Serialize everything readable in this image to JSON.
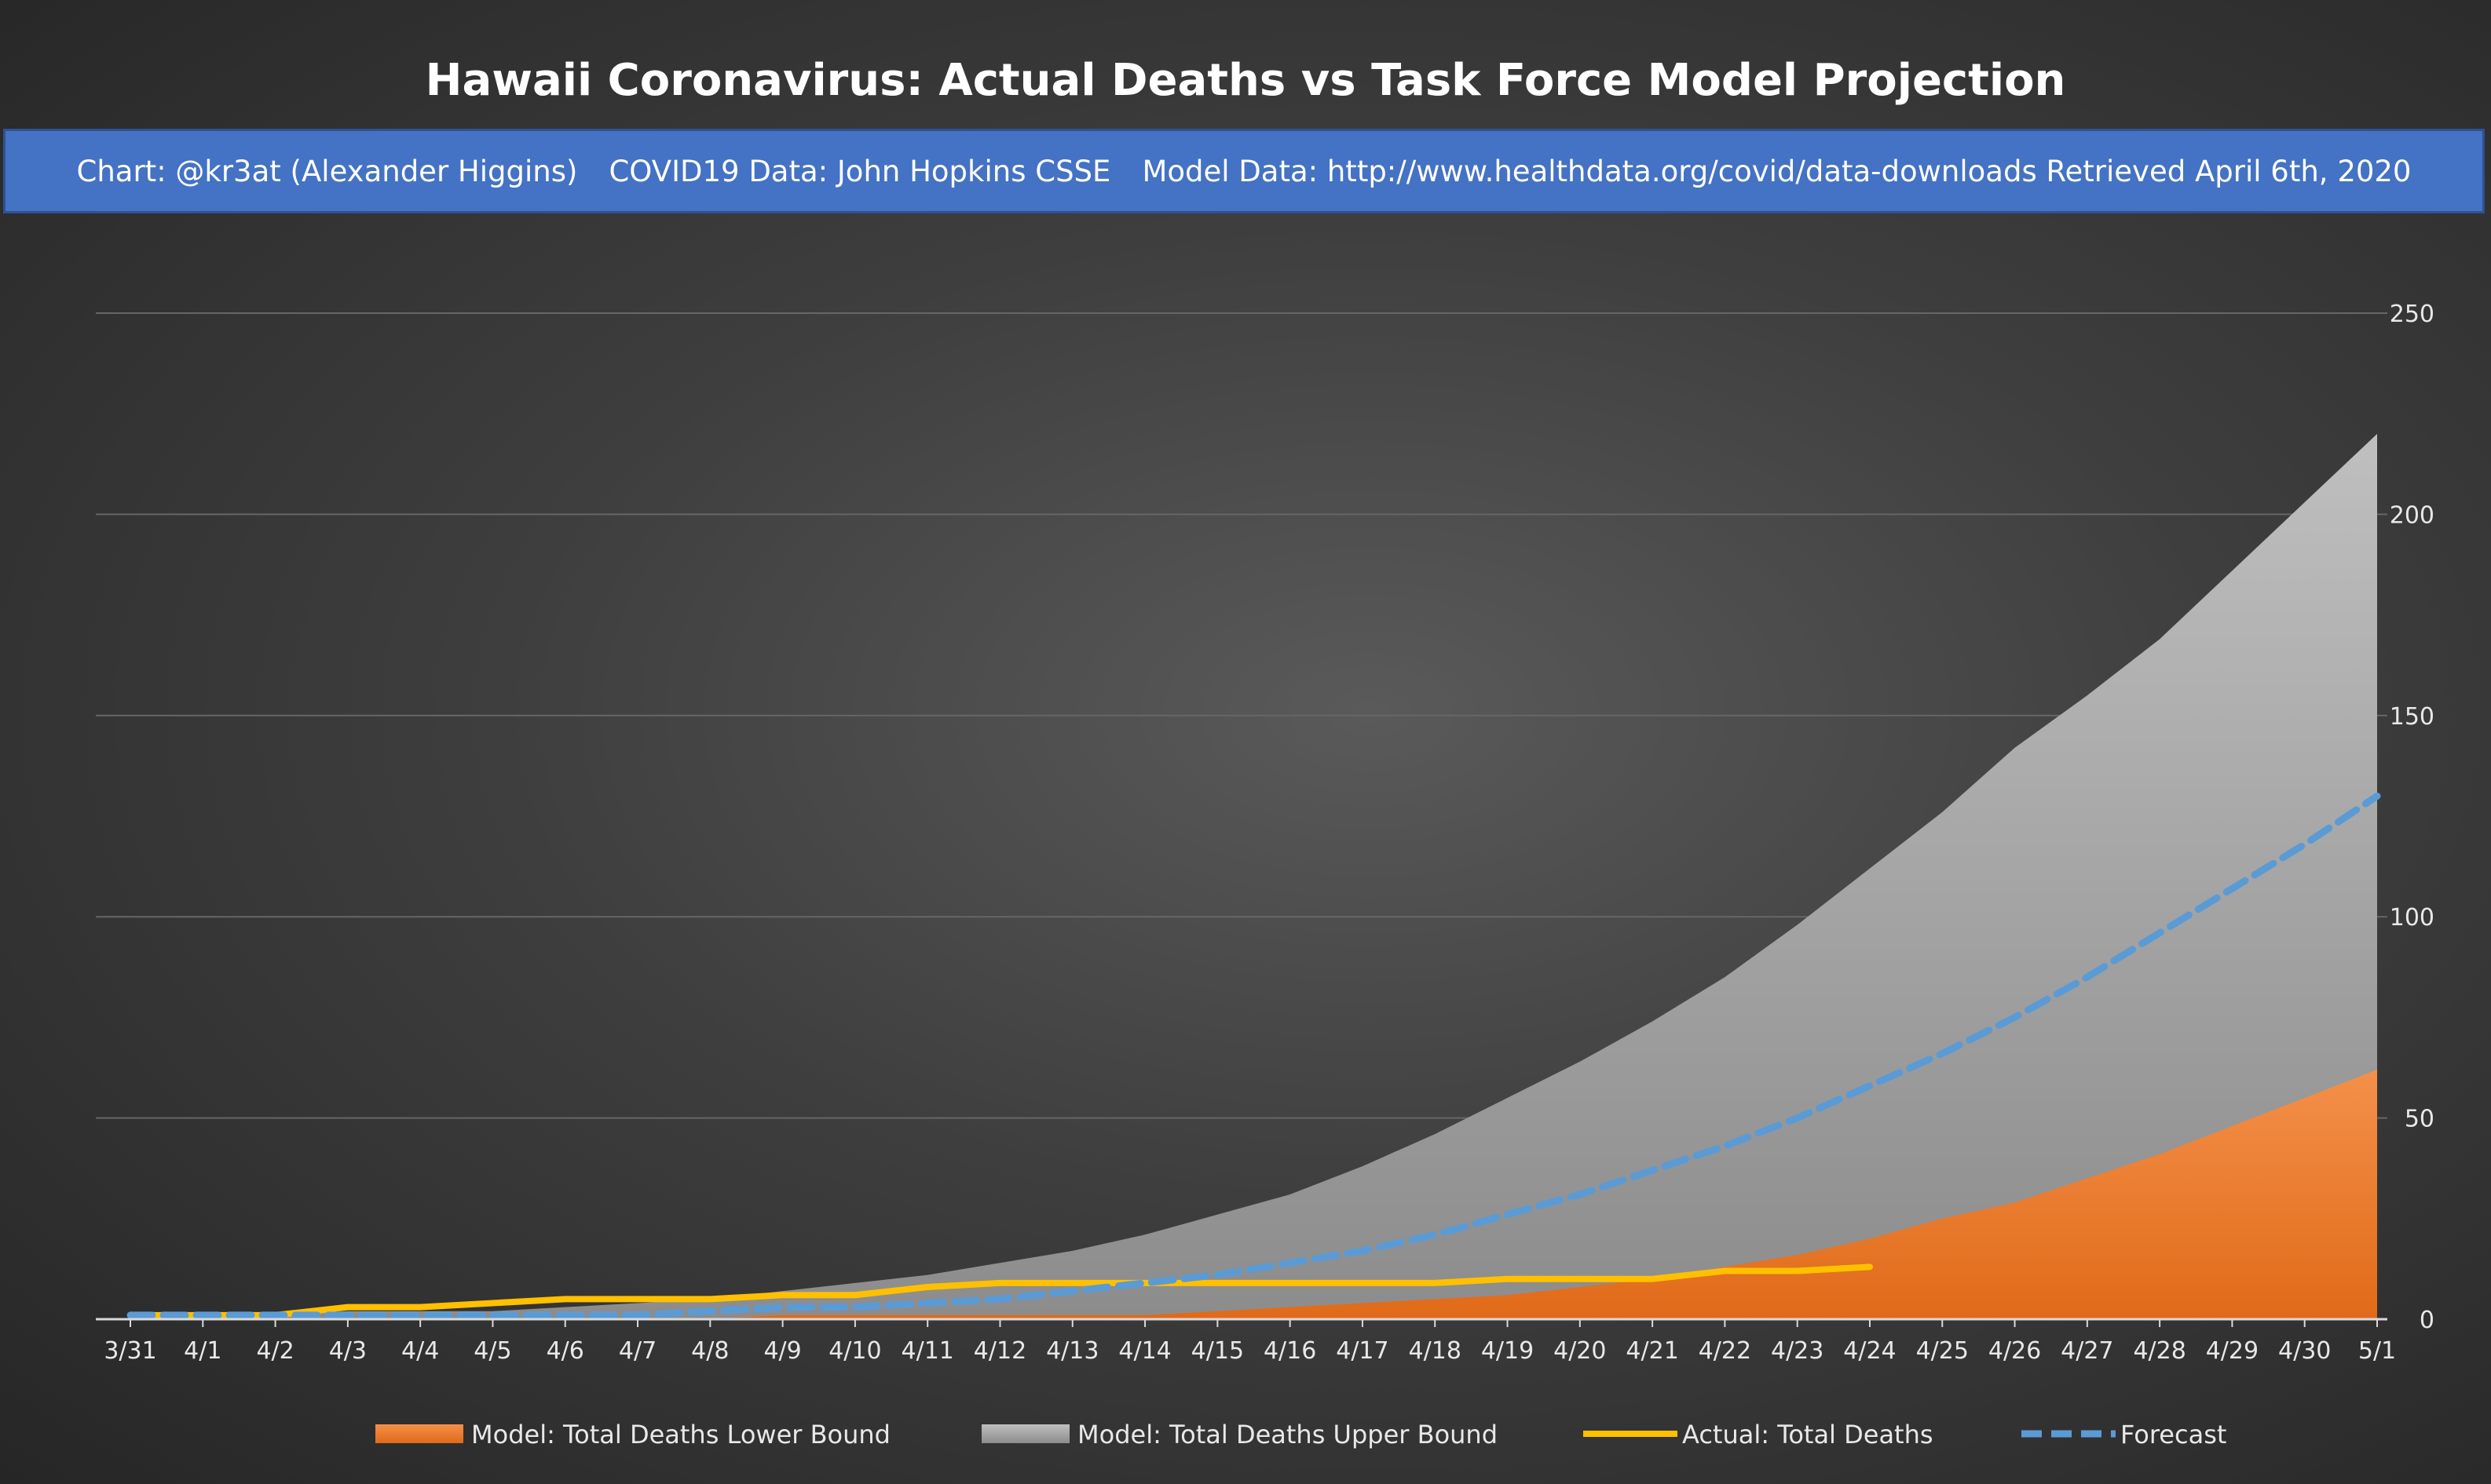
{
  "header": {
    "title": "Hawaii Coronavirus: Actual Deaths vs Task Force Model Projection",
    "credits": [
      "Chart: @kr3at (Alexander Higgins)",
      "COVID19 Data: John Hopkins CSSE",
      "Model Data: http://www.healthdata.org/covid/data-downloads Retrieved April 6th, 2020"
    ]
  },
  "colors": {
    "lower": "#ed7d31",
    "upper": "#a6a6a6",
    "actual": "#ffc000",
    "forecast": "#5b9bd5",
    "banner": "#4472c4"
  },
  "chart_data": {
    "type": "area",
    "title": "Hawaii Coronavirus: Actual Deaths vs Task Force Model Projection",
    "categories": [
      "3/31",
      "4/1",
      "4/2",
      "4/3",
      "4/4",
      "4/5",
      "4/6",
      "4/7",
      "4/8",
      "4/9",
      "4/10",
      "4/11",
      "4/12",
      "4/13",
      "4/14",
      "4/15",
      "4/16",
      "4/17",
      "4/18",
      "4/19",
      "4/20",
      "4/21",
      "4/22",
      "4/23",
      "4/24",
      "4/25",
      "4/26",
      "4/27",
      "4/28",
      "4/29",
      "4/30",
      "5/1"
    ],
    "yaxis_side": "right",
    "ylim": [
      0,
      250
    ],
    "yticks": [
      0,
      50,
      100,
      150,
      200,
      250
    ],
    "grid": true,
    "legend_position": "bottom",
    "series": [
      {
        "name": "Model: Total Deaths Lower Bound",
        "kind": "area",
        "values": [
          0,
          0,
          0,
          0,
          0,
          0,
          0,
          0,
          0,
          1,
          1,
          1,
          1,
          1,
          1,
          2,
          3,
          4,
          5,
          6,
          8,
          10,
          13,
          16,
          20,
          25,
          29,
          35,
          41,
          48,
          55,
          62
        ]
      },
      {
        "name": "Model: Total Deaths Upper Bound",
        "kind": "area",
        "values": [
          1,
          1,
          1,
          2,
          2,
          2,
          3,
          4,
          5,
          7,
          9,
          11,
          14,
          17,
          21,
          26,
          31,
          38,
          46,
          55,
          64,
          74,
          85,
          98,
          112,
          126,
          142,
          155,
          169,
          186,
          203,
          220
        ]
      },
      {
        "name": "Actual: Total Deaths",
        "kind": "line",
        "values": [
          1,
          1,
          1,
          3,
          3,
          4,
          5,
          5,
          5,
          6,
          6,
          8,
          9,
          9,
          9,
          9,
          9,
          9,
          9,
          10,
          10,
          10,
          12,
          12,
          13,
          null,
          null,
          null,
          null,
          null,
          null,
          null
        ]
      },
      {
        "name": "Forecast",
        "kind": "dashed-line",
        "values": [
          1,
          1,
          1,
          1,
          1,
          1,
          1,
          1,
          2,
          3,
          3,
          4,
          5,
          7,
          9,
          11,
          14,
          17,
          21,
          26,
          31,
          37,
          43,
          50,
          58,
          66,
          75,
          85,
          96,
          107,
          118,
          130
        ]
      }
    ]
  }
}
